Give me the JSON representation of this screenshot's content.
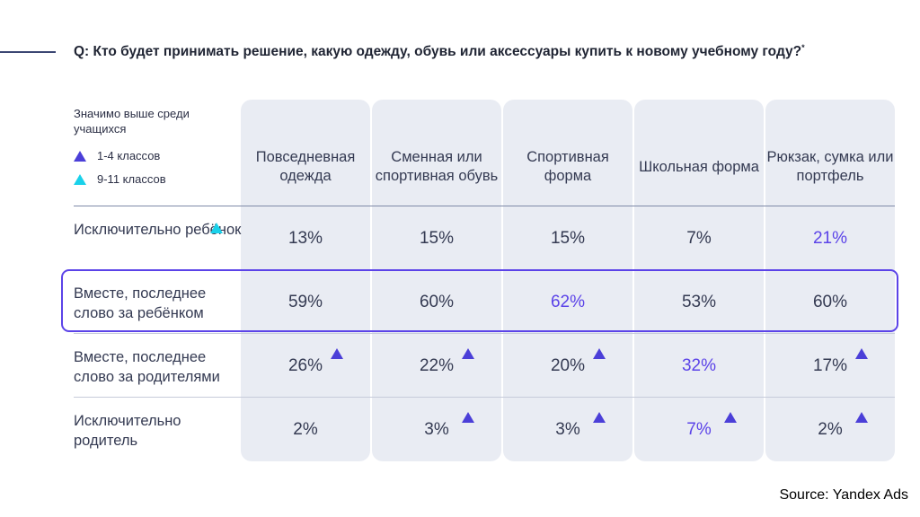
{
  "question": {
    "text": "Q: Кто будет принимать решение, какую одежду, обувь или аксессуары купить к новому учебному году?",
    "mark": "*"
  },
  "legend": {
    "title": "Значимо выше среди учащихся",
    "items": [
      {
        "label": "1-4 классов",
        "color": "#4b3fd8"
      },
      {
        "label": "9-11 классов",
        "color": "#19d1ea"
      }
    ]
  },
  "source": "Source: Yandex Ads",
  "chart_data": {
    "type": "table",
    "title": "Q: Кто будет принимать решение, какую одежду, обувь или аксессуары купить к новому учебному году?*",
    "columns": [
      "Повседневная одежда",
      "Сменная или спортивная обувь",
      "Спортивная форма",
      "Школьная форма",
      "Рюкзак, сумка или портфель"
    ],
    "rows": [
      {
        "label": "Исключительно ребёнок",
        "label_marker": "9-11 классов",
        "values": [
          "13%",
          "15%",
          "15%",
          "7%",
          "21%"
        ],
        "highlighted": [
          false,
          false,
          false,
          false,
          true
        ],
        "markers": [
          "",
          "",
          "",
          "",
          ""
        ]
      },
      {
        "label": "Вместе, последнее слово за ребёнком",
        "label_marker": "",
        "values": [
          "59%",
          "60%",
          "62%",
          "53%",
          "60%"
        ],
        "highlighted": [
          false,
          false,
          true,
          false,
          false
        ],
        "markers": [
          "",
          "",
          "",
          "",
          ""
        ]
      },
      {
        "label": "Вместе, последнее слово за родителями",
        "label_marker": "",
        "values": [
          "26%",
          "22%",
          "20%",
          "32%",
          "17%"
        ],
        "highlighted": [
          false,
          false,
          false,
          true,
          false
        ],
        "markers": [
          "1-4 классов",
          "1-4 классов",
          "1-4 классов",
          "",
          "1-4 классов"
        ]
      },
      {
        "label": "Исключительно родитель",
        "label_marker": "",
        "values": [
          "2%",
          "3%",
          "3%",
          "7%",
          "2%"
        ],
        "highlighted": [
          false,
          false,
          false,
          true,
          false
        ],
        "markers": [
          "",
          "1-4 классов",
          "1-4 классов",
          "1-4 классов",
          "1-4 классов"
        ]
      }
    ],
    "highlighted_row": "Вместе, последнее слово за ребёнком"
  }
}
